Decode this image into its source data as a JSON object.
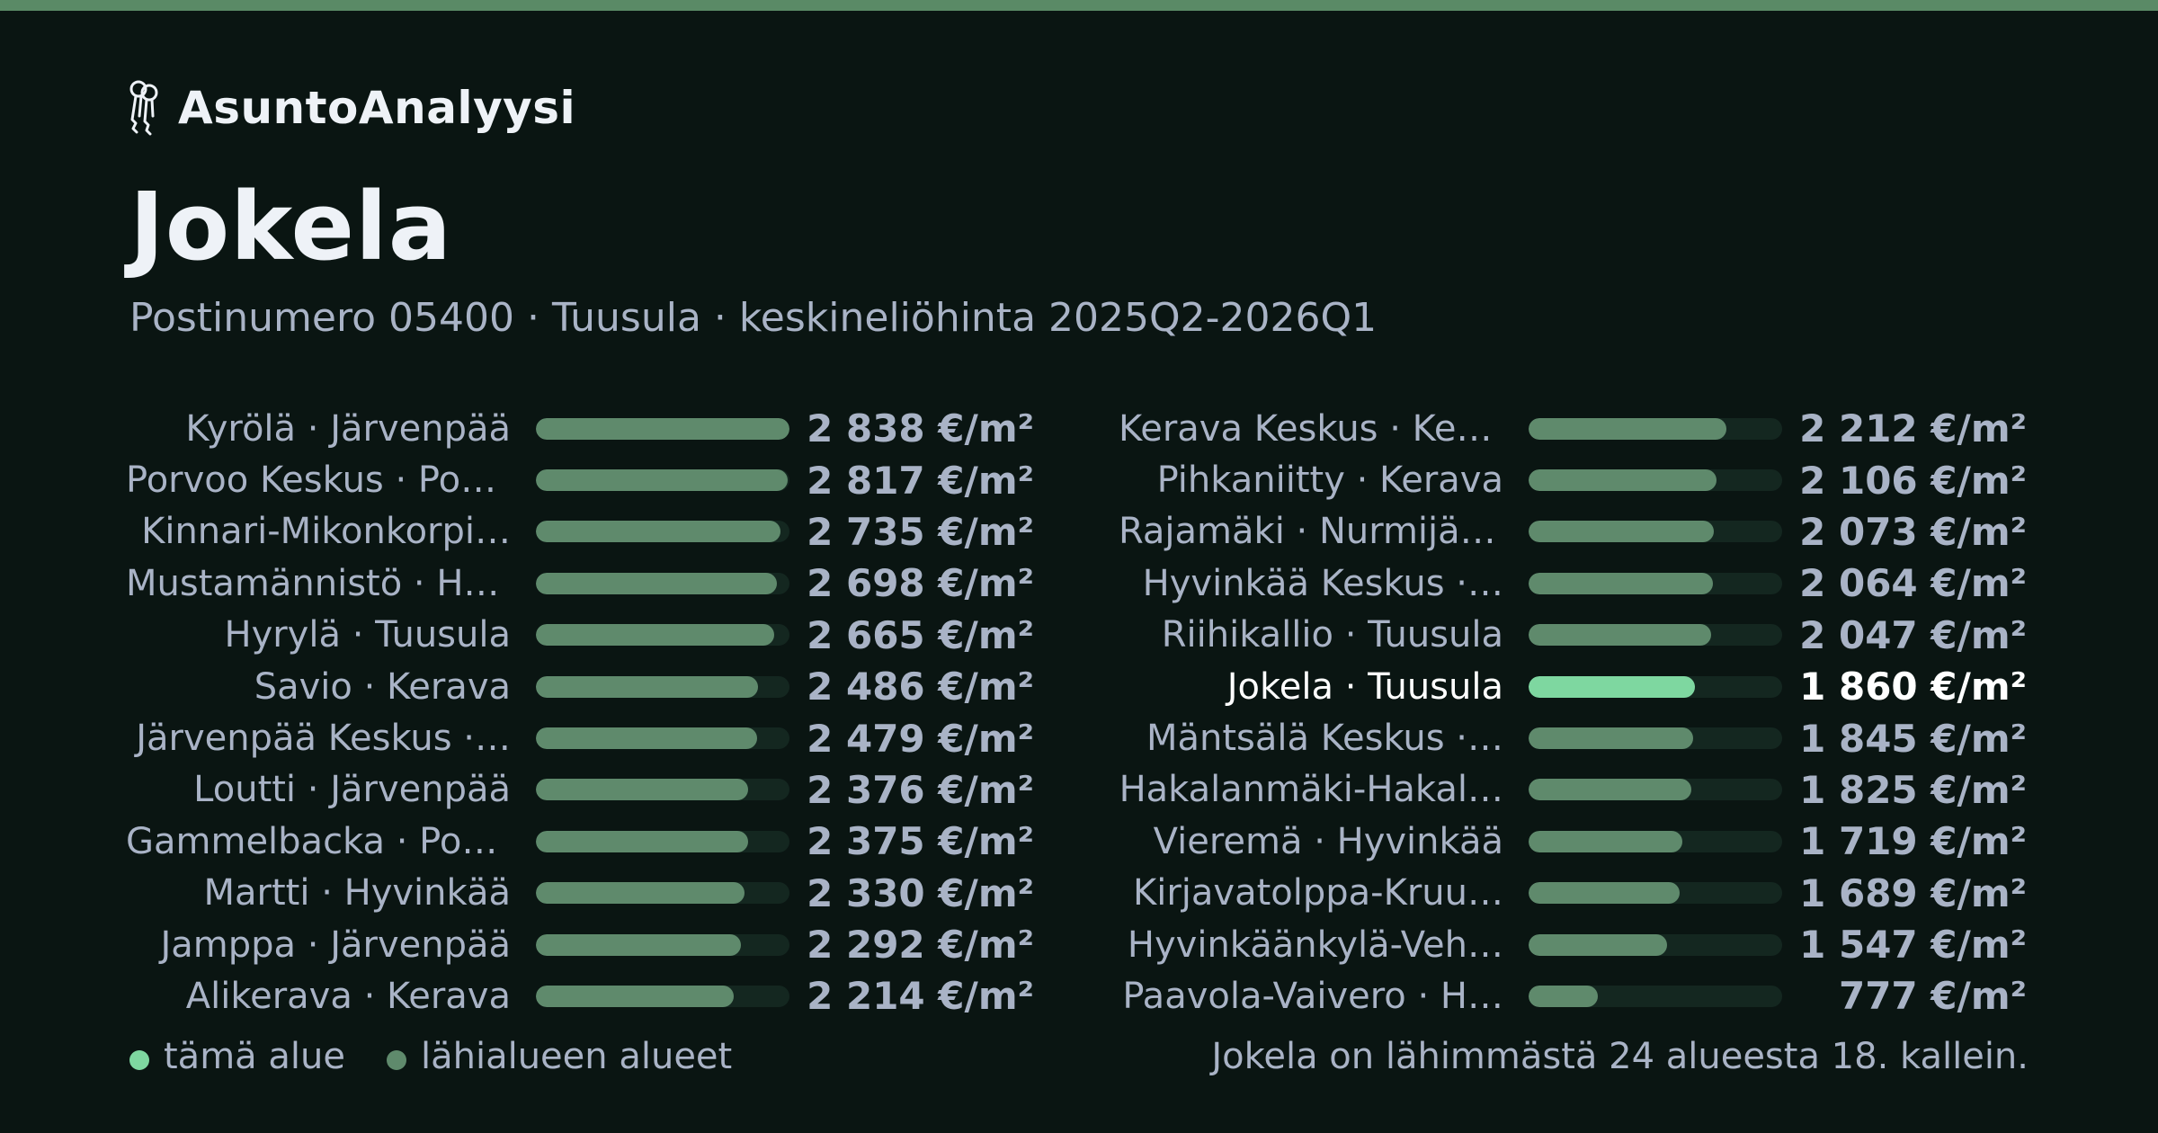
{
  "brand": {
    "name": "AsuntoAnalyysi",
    "icon": "keys-icon"
  },
  "title": "Jokela",
  "subtitle": "Postinumero 05400 · Tuusula · keskineliöhinta 2025Q2-2026Q1",
  "colors": {
    "accent": "#7ed7a0",
    "bar": "#5f8a6c",
    "track": "#142720",
    "topbar": "#5a8a66",
    "background": "#0a1512"
  },
  "chart_data": {
    "type": "bar",
    "orientation": "horizontal",
    "unit": "€/m²",
    "xlim": [
      0,
      2838
    ],
    "highlight": "Jokela · Tuusula",
    "categories": [
      "Kyrölä · Järvenpää",
      "Porvoo Keskus · Por…",
      "Kinnari-Mikonkorpi…",
      "Mustamännistö · Hy…",
      "Hyrylä · Tuusula",
      "Savio · Kerava",
      "Järvenpää Keskus ·…",
      "Loutti · Järvenpää",
      "Gammelbacka · Por…",
      "Martti · Hyvinkää",
      "Jamppa · Järvenpää",
      "Alikerava · Kerava",
      "Kerava Keskus · Ker…",
      "Pihkaniitty · Kerava",
      "Rajamäki · Nurmijärvi",
      "Hyvinkää Keskus ·…",
      "Riihikallio · Tuusula",
      "Jokela · Tuusula",
      "Mäntsälä Keskus ·…",
      "Hakalanmäki-Hakal…",
      "Vieremä · Hyvinkää",
      "Kirjavatolppa-Kruu…",
      "Hyvinkäänkylä-Veh…",
      "Paavola-Vaivero · H…"
    ],
    "values": [
      2838,
      2817,
      2735,
      2698,
      2665,
      2486,
      2479,
      2376,
      2375,
      2330,
      2292,
      2214,
      2212,
      2106,
      2073,
      2064,
      2047,
      1860,
      1845,
      1825,
      1719,
      1689,
      1547,
      777
    ],
    "value_labels": [
      "2 838 €/m²",
      "2 817 €/m²",
      "2 735 €/m²",
      "2 698 €/m²",
      "2 665 €/m²",
      "2 486 €/m²",
      "2 479 €/m²",
      "2 376 €/m²",
      "2 375 €/m²",
      "2 330 €/m²",
      "2 292 €/m²",
      "2 214 €/m²",
      "2 212 €/m²",
      "2 106 €/m²",
      "2 073 €/m²",
      "2 064 €/m²",
      "2 047 €/m²",
      "1 860 €/m²",
      "1 845 €/m²",
      "1 825 €/m²",
      "1 719 €/m²",
      "1 689 €/m²",
      "1 547 €/m²",
      "777 €/m²"
    ]
  },
  "legend": {
    "this_area": "tämä alue",
    "nearby_areas": "lähialueen alueet"
  },
  "note": "Jokela on lähimmästä 24 alueesta 18. kallein."
}
